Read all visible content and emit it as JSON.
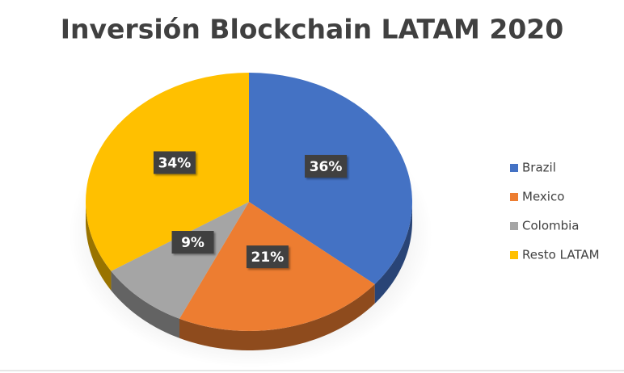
{
  "chart_data": {
    "type": "pie",
    "title": "Inversión Blockchain LATAM 2020",
    "categories": [
      "Brazil",
      "Mexico",
      "Colombia",
      "Resto LATAM"
    ],
    "values": [
      36,
      21,
      9,
      34
    ],
    "value_labels": [
      "36%",
      "21%",
      "9%",
      "34%"
    ],
    "colors": [
      "#4472c4",
      "#ed7d31",
      "#a5a5a5",
      "#ffc000"
    ],
    "legend": "right"
  }
}
